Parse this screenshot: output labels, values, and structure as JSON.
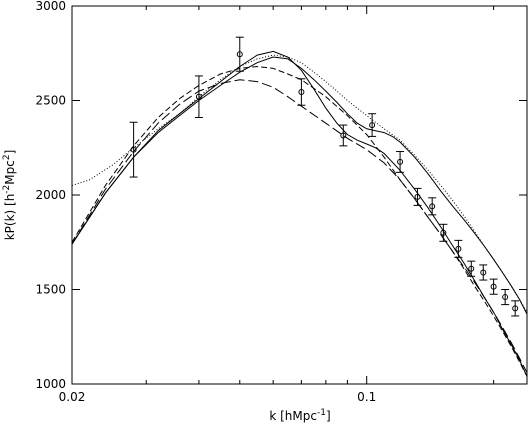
{
  "chart_data": {
    "type": "line",
    "title": "",
    "xlabel": {
      "base": "k [hMpc",
      "sup": "-1",
      "tail": "]"
    },
    "ylabel": {
      "p1": "kP(k) [h",
      "s1": "-2",
      "p2": "Mpc",
      "s2": "2",
      "p3": "]"
    },
    "xscale": "log",
    "xlim": [
      0.02,
      0.24
    ],
    "ylim": [
      1000,
      3000
    ],
    "xticks": [
      {
        "value": 0.02,
        "label": "0.02"
      },
      {
        "value": 0.1,
        "label": "0.1"
      }
    ],
    "yticks": [
      {
        "value": 1000,
        "label": "1000"
      },
      {
        "value": 1500,
        "label": "1500"
      },
      {
        "value": 2000,
        "label": "2000"
      },
      {
        "value": 2500,
        "label": "2500"
      },
      {
        "value": 3000,
        "label": "3000"
      }
    ],
    "grid": false,
    "legend": "none",
    "series": [
      {
        "style": "solid",
        "x": [
          0.02,
          0.024,
          0.028,
          0.032,
          0.036,
          0.04,
          0.045,
          0.05,
          0.055,
          0.06,
          0.065,
          0.07,
          0.075,
          0.08,
          0.085,
          0.09,
          0.095,
          0.1,
          0.105,
          0.11,
          0.12,
          0.13,
          0.14,
          0.15,
          0.16,
          0.17,
          0.18,
          0.19,
          0.2,
          0.21,
          0.22,
          0.23,
          0.24
        ],
        "y": [
          1740,
          2010,
          2200,
          2340,
          2430,
          2510,
          2600,
          2680,
          2740,
          2760,
          2730,
          2660,
          2560,
          2460,
          2380,
          2320,
          2290,
          2270,
          2250,
          2220,
          2130,
          2030,
          1930,
          1830,
          1730,
          1640,
          1550,
          1460,
          1380,
          1290,
          1210,
          1130,
          1040
        ]
      },
      {
        "style": "solid",
        "x": [
          0.02,
          0.024,
          0.028,
          0.032,
          0.036,
          0.04,
          0.045,
          0.05,
          0.055,
          0.06,
          0.065,
          0.07,
          0.075,
          0.08,
          0.085,
          0.09,
          0.095,
          0.1,
          0.105,
          0.11,
          0.115,
          0.12,
          0.13,
          0.14,
          0.15,
          0.16,
          0.17,
          0.18,
          0.19,
          0.2,
          0.21,
          0.22,
          0.23,
          0.24
        ],
        "y": [
          1740,
          2010,
          2200,
          2330,
          2420,
          2500,
          2580,
          2650,
          2700,
          2730,
          2720,
          2670,
          2610,
          2550,
          2490,
          2430,
          2380,
          2350,
          2340,
          2330,
          2310,
          2280,
          2200,
          2110,
          2020,
          1940,
          1870,
          1800,
          1730,
          1660,
          1590,
          1520,
          1450,
          1370
        ]
      },
      {
        "style": "dotted",
        "x": [
          0.02,
          0.022,
          0.025,
          0.028,
          0.032,
          0.036,
          0.04,
          0.045,
          0.05,
          0.055,
          0.06,
          0.065,
          0.07,
          0.075,
          0.08,
          0.085,
          0.09,
          0.1,
          0.11,
          0.12,
          0.13,
          0.14,
          0.15,
          0.16,
          0.17,
          0.18,
          0.19,
          0.2,
          0.21,
          0.22,
          0.23,
          0.24
        ],
        "y": [
          2050,
          2080,
          2160,
          2250,
          2350,
          2430,
          2520,
          2610,
          2680,
          2720,
          2740,
          2730,
          2700,
          2650,
          2600,
          2550,
          2500,
          2420,
          2350,
          2290,
          2210,
          2130,
          2050,
          1970,
          1890,
          1810,
          1730,
          1660,
          1590,
          1520,
          1450,
          1380
        ]
      },
      {
        "style": "dashed",
        "x": [
          0.02,
          0.024,
          0.028,
          0.032,
          0.036,
          0.04,
          0.045,
          0.05,
          0.055,
          0.06,
          0.065,
          0.07,
          0.08,
          0.09,
          0.1,
          0.11,
          0.12,
          0.13,
          0.14,
          0.15,
          0.16,
          0.17,
          0.18,
          0.19,
          0.2,
          0.21,
          0.22,
          0.23,
          0.24
        ],
        "y": [
          1750,
          2050,
          2260,
          2410,
          2510,
          2580,
          2640,
          2670,
          2680,
          2670,
          2640,
          2610,
          2520,
          2420,
          2320,
          2200,
          2080,
          1980,
          1880,
          1790,
          1700,
          1610,
          1520,
          1440,
          1360,
          1280,
          1200,
          1120,
          1040
        ]
      },
      {
        "style": "longdash",
        "x": [
          0.02,
          0.024,
          0.028,
          0.032,
          0.036,
          0.04,
          0.045,
          0.05,
          0.055,
          0.06,
          0.065,
          0.07,
          0.08,
          0.09,
          0.1,
          0.11,
          0.12,
          0.13,
          0.14,
          0.15,
          0.16,
          0.17,
          0.18,
          0.19,
          0.2,
          0.21,
          0.22,
          0.23,
          0.24
        ],
        "y": [
          1740,
          2030,
          2230,
          2380,
          2480,
          2550,
          2590,
          2610,
          2600,
          2570,
          2520,
          2470,
          2380,
          2300,
          2240,
          2170,
          2080,
          1980,
          1880,
          1790,
          1700,
          1620,
          1540,
          1460,
          1380,
          1300,
          1220,
          1140,
          1060
        ]
      }
    ],
    "points": {
      "x": [
        0.028,
        0.04,
        0.05,
        0.07,
        0.088,
        0.103,
        0.12,
        0.132,
        0.143,
        0.152,
        0.165,
        0.177,
        0.189,
        0.2,
        0.213,
        0.225
      ],
      "y": [
        2240,
        2520,
        2745,
        2545,
        2315,
        2370,
        2175,
        1990,
        1940,
        1800,
        1715,
        1610,
        1590,
        1515,
        1460,
        1400
      ],
      "err": [
        145,
        110,
        90,
        70,
        55,
        60,
        55,
        45,
        45,
        45,
        45,
        40,
        40,
        40,
        40,
        40
      ]
    }
  }
}
